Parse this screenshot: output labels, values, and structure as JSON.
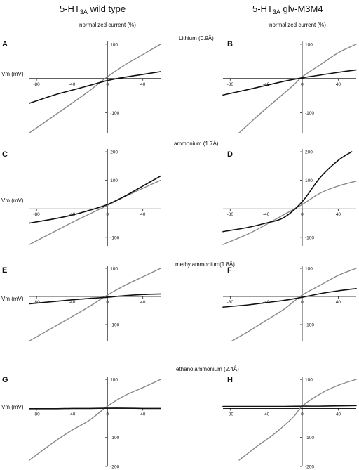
{
  "figure": {
    "column_titles": [
      {
        "main": "5-HT",
        "sub": "3A",
        "rest": "  wild type"
      },
      {
        "main": "5-HT",
        "sub": "3A",
        "rest": "  glv-M3M4"
      }
    ],
    "y_axis_label": "normalized current (%)",
    "x_axis_label": "Vm (mV)",
    "row_titles": [
      "Lithium (0.9Å)",
      "ammonium (1.7Å)",
      "methylammonium(1.8Å)",
      "ethanolammonium (2.4Å)"
    ],
    "colors": {
      "test_ion": "#111111",
      "reference": "#888888",
      "axis": "#000000"
    }
  },
  "chart_data": [
    {
      "panel": "A",
      "type": "line",
      "xlim": [
        -88,
        60
      ],
      "ylim": [
        -160,
        110
      ],
      "x_ticks": [
        -80,
        -40,
        0,
        40
      ],
      "x_tick_labels": [
        "-80",
        "-40",
        "0",
        "40"
      ],
      "y_ticks": [
        100,
        -100
      ],
      "y_tick_labels": [
        "100",
        "-100"
      ],
      "series": [
        {
          "x": [
            -88,
            -60,
            -40,
            -20,
            0,
            20,
            40,
            60
          ],
          "y": [
            -158,
            -108,
            -72,
            -35,
            5,
            40,
            70,
            100
          ]
        },
        {
          "x": [
            -88,
            -60,
            -40,
            -20,
            0,
            20,
            40,
            60
          ],
          "y": [
            -72,
            -48,
            -34,
            -20,
            -6,
            4,
            12,
            20
          ]
        }
      ]
    },
    {
      "panel": "B",
      "type": "line",
      "xlim": [
        -88,
        60
      ],
      "ylim": [
        -160,
        110
      ],
      "x_ticks": [
        -80,
        -40,
        0,
        40
      ],
      "x_tick_labels": [
        "-80",
        "-40",
        "0",
        "40"
      ],
      "y_ticks": [
        100,
        -100
      ],
      "y_tick_labels": [
        "100",
        "-100"
      ],
      "series": [
        {
          "x": [
            -70,
            -50,
            -30,
            -10,
            0,
            20,
            40,
            60
          ],
          "y": [
            -158,
            -110,
            -65,
            -20,
            5,
            40,
            75,
            100
          ]
        },
        {
          "x": [
            -88,
            -60,
            -40,
            -20,
            0,
            20,
            40,
            60
          ],
          "y": [
            -48,
            -32,
            -20,
            -8,
            2,
            10,
            18,
            25
          ]
        }
      ]
    },
    {
      "panel": "C",
      "type": "line",
      "xlim": [
        -88,
        60
      ],
      "ylim": [
        -130,
        210
      ],
      "x_ticks": [
        -80,
        -40,
        0,
        40
      ],
      "x_tick_labels": [
        "-80",
        "-40",
        "0",
        "40"
      ],
      "y_ticks": [
        200,
        100,
        -100
      ],
      "y_tick_labels": [
        "200",
        "100",
        "-100"
      ],
      "series": [
        {
          "x": [
            -88,
            -60,
            -40,
            -20,
            0,
            20,
            40,
            60
          ],
          "y": [
            -125,
            -80,
            -48,
            -18,
            12,
            43,
            72,
            100
          ]
        },
        {
          "x": [
            -88,
            -60,
            -40,
            -20,
            0,
            20,
            40,
            60
          ],
          "y": [
            -50,
            -35,
            -22,
            -5,
            15,
            45,
            80,
            115
          ]
        }
      ]
    },
    {
      "panel": "D",
      "type": "line",
      "xlim": [
        -88,
        60
      ],
      "ylim": [
        -130,
        210
      ],
      "x_ticks": [
        -80,
        -40,
        0,
        40
      ],
      "x_tick_labels": [
        "-80",
        "-40",
        "0",
        "40"
      ],
      "y_ticks": [
        200,
        100,
        -100
      ],
      "y_tick_labels": [
        "200",
        "100",
        "-100"
      ],
      "series": [
        {
          "x": [
            -88,
            -60,
            -40,
            -20,
            0,
            20,
            40,
            60
          ],
          "y": [
            -125,
            -88,
            -55,
            -20,
            15,
            55,
            80,
            97
          ]
        },
        {
          "x": [
            -88,
            -60,
            -40,
            -20,
            0,
            20,
            40,
            55
          ],
          "y": [
            -80,
            -65,
            -50,
            -30,
            25,
            110,
            170,
            200
          ]
        }
      ]
    },
    {
      "panel": "E",
      "type": "line",
      "xlim": [
        -88,
        60
      ],
      "ylim": [
        -160,
        110
      ],
      "x_ticks": [
        -80,
        -40,
        0,
        40
      ],
      "x_tick_labels": [
        "-80",
        "-40",
        "0",
        "40"
      ],
      "y_ticks": [
        100,
        -100
      ],
      "y_tick_labels": [
        "100",
        "-100"
      ],
      "series": [
        {
          "x": [
            -88,
            -60,
            -40,
            -20,
            0,
            20,
            40,
            60
          ],
          "y": [
            -158,
            -108,
            -72,
            -35,
            5,
            40,
            70,
            100
          ]
        },
        {
          "x": [
            -88,
            -60,
            -40,
            -20,
            0,
            20,
            40,
            60
          ],
          "y": [
            -26,
            -18,
            -12,
            -7,
            -3,
            3,
            7,
            9
          ]
        }
      ]
    },
    {
      "panel": "F",
      "type": "line",
      "xlim": [
        -88,
        60
      ],
      "ylim": [
        -160,
        110
      ],
      "x_ticks": [
        -80,
        -40,
        0,
        40
      ],
      "x_tick_labels": [
        "-80",
        "-40",
        "0",
        "40"
      ],
      "y_ticks": [
        100,
        -100
      ],
      "y_tick_labels": [
        "100",
        "-100"
      ],
      "series": [
        {
          "x": [
            -78,
            -60,
            -40,
            -20,
            0,
            20,
            40,
            60
          ],
          "y": [
            -158,
            -125,
            -85,
            -45,
            5,
            40,
            75,
            100
          ]
        },
        {
          "x": [
            -88,
            -60,
            -40,
            -20,
            0,
            20,
            40,
            60
          ],
          "y": [
            -38,
            -30,
            -22,
            -14,
            -3,
            10,
            20,
            28
          ]
        }
      ]
    },
    {
      "panel": "G",
      "type": "line",
      "xlim": [
        -88,
        60
      ],
      "ylim": [
        -200,
        110
      ],
      "x_ticks": [
        -80,
        -40,
        0,
        40
      ],
      "x_tick_labels": [
        "-80",
        "-40",
        "0",
        "40"
      ],
      "y_ticks": [
        100,
        -100,
        -200
      ],
      "y_tick_labels": [
        "100",
        "-100",
        "-200"
      ],
      "series": [
        {
          "x": [
            -88,
            -60,
            -40,
            -20,
            0,
            20,
            40,
            60
          ],
          "y": [
            -178,
            -115,
            -75,
            -40,
            8,
            45,
            72,
            100
          ]
        },
        {
          "x": [
            -88,
            -60,
            -40,
            -20,
            0,
            20,
            40,
            60
          ],
          "y": [
            -1,
            -1,
            0,
            0,
            1,
            1,
            0,
            0
          ]
        }
      ]
    },
    {
      "panel": "H",
      "type": "line",
      "xlim": [
        -88,
        60
      ],
      "ylim": [
        -200,
        110
      ],
      "x_ticks": [
        -80,
        -40,
        0,
        40
      ],
      "x_tick_labels": [
        "-80",
        "-40",
        "0",
        "40"
      ],
      "y_ticks": [
        100,
        -100,
        -200
      ],
      "y_tick_labels": [
        "100",
        "-100",
        "-200"
      ],
      "series": [
        {
          "x": [
            -70,
            -50,
            -30,
            -10,
            0,
            20,
            40,
            60
          ],
          "y": [
            -178,
            -130,
            -85,
            -30,
            8,
            50,
            80,
            100
          ]
        },
        {
          "x": [
            -88,
            -60,
            -40,
            -20,
            0,
            20,
            40,
            60
          ],
          "y": [
            7,
            7,
            7,
            7,
            8,
            8,
            9,
            10
          ]
        }
      ]
    }
  ]
}
